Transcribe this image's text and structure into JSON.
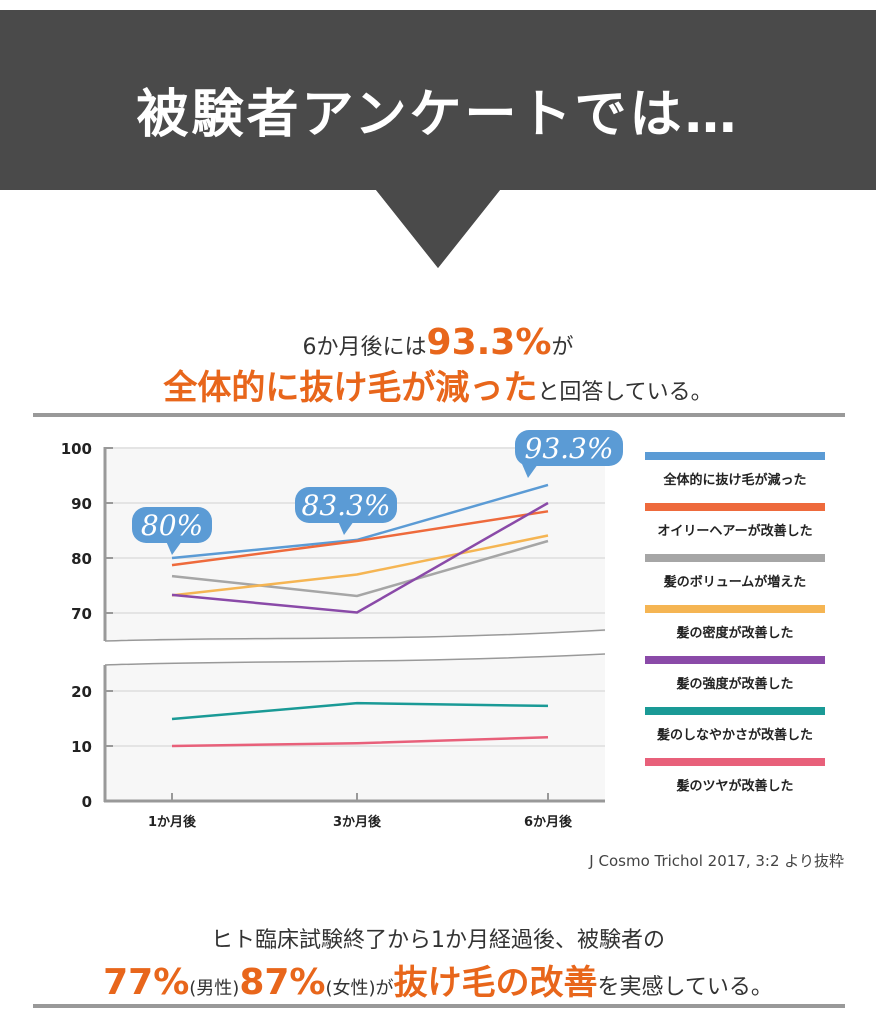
{
  "header": {
    "title": "被験者アンケートでは…",
    "bg_color": "#4a4a4a"
  },
  "headline": {
    "line1_pre": "6か月後には",
    "line1_highlight": "93.3%",
    "line1_post": "が",
    "line2_highlight": "全体的に抜け毛が減った",
    "line2_post": "と回答している。"
  },
  "chart_data": {
    "type": "line",
    "categories": [
      "1か月後",
      "3か月後",
      "6か月後"
    ],
    "y_ticks_upper": [
      "100",
      "90",
      "80",
      "70"
    ],
    "y_ticks_lower": [
      "20",
      "10",
      "0"
    ],
    "ylim_upper": [
      65,
      100
    ],
    "ylim_lower": [
      0,
      25
    ],
    "axis_break": true,
    "grid": true,
    "legend_position": "right",
    "series": [
      {
        "name": "全体的に抜け毛が減った",
        "color": "#5b9bd5",
        "values": [
          80,
          83.3,
          93.3
        ]
      },
      {
        "name": "オイリーヘアーが改善した",
        "color": "#ee6a3c",
        "values": [
          78.7,
          83.1,
          88.5
        ]
      },
      {
        "name": "髪のボリュームが増えた",
        "color": "#a6a6a6",
        "values": [
          76.7,
          73.1,
          83.1
        ]
      },
      {
        "name": "髪の密度が改善した",
        "color": "#f5b553",
        "values": [
          73.2,
          77,
          84.1
        ]
      },
      {
        "name": "髪の強度が改善した",
        "color": "#8a4aa8",
        "values": [
          73.3,
          70.1,
          90
        ]
      },
      {
        "name": "髪のしなやかさが改善した",
        "color": "#1a9a96",
        "values": [
          14.9,
          17.8,
          17.3
        ]
      },
      {
        "name": "髪のツヤが改善した",
        "color": "#e8607a",
        "values": [
          10,
          10.5,
          11.6
        ]
      }
    ],
    "callouts": [
      "80%",
      "83.3%",
      "93.3%"
    ]
  },
  "source": "J Cosmo Trichol 2017, 3:2 より抜粋",
  "footer": {
    "line1": "ヒト臨床試験終了から1か月経過後、被験者の",
    "male_pct": "77%",
    "male_label": "(男性)",
    "female_pct": "87%",
    "female_label": "(女性)が",
    "highlight": "抜け毛の改善",
    "post": "を実感している。"
  },
  "accent_color": "#e8661b"
}
